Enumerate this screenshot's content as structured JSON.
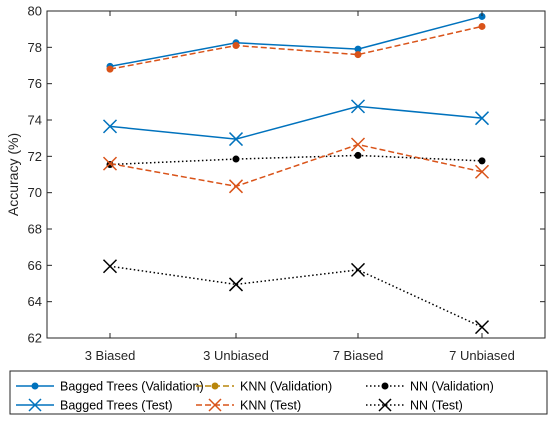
{
  "chart_data": {
    "type": "line",
    "ylabel": "Accuracy (%)",
    "xlabel": "",
    "title": "",
    "categories": [
      "3 Biased",
      "3 Unbiased",
      "7 Biased",
      "7 Unbiased"
    ],
    "ylim": [
      62,
      80
    ],
    "yticks": [
      62,
      64,
      66,
      68,
      70,
      72,
      74,
      76,
      78,
      80
    ],
    "grid": false,
    "legend_position": "bottom",
    "series": [
      {
        "name": "Bagged Trees (Validation)",
        "values": [
          76.95,
          78.25,
          77.9,
          79.7
        ],
        "color": "#0072BD",
        "dash": "solid",
        "marker": "dot"
      },
      {
        "name": "KNN (Validation)",
        "values": [
          76.8,
          78.1,
          77.6,
          79.15
        ],
        "color": "#D95319",
        "dash": "dashed",
        "marker": "dot",
        "legend_color": "#B8860B"
      },
      {
        "name": "NN (Validation)",
        "values": [
          71.55,
          71.85,
          72.05,
          71.75
        ],
        "color": "#000000",
        "dash": "dotted",
        "marker": "dot"
      },
      {
        "name": "Bagged Trees (Test)",
        "values": [
          73.65,
          72.95,
          74.75,
          74.1
        ],
        "color": "#0072BD",
        "dash": "solid",
        "marker": "x"
      },
      {
        "name": "KNN (Test)",
        "values": [
          71.6,
          70.35,
          72.65,
          71.15
        ],
        "color": "#D95319",
        "dash": "dashed",
        "marker": "x"
      },
      {
        "name": "NN (Test)",
        "values": [
          65.95,
          64.95,
          65.75,
          62.6
        ],
        "color": "#000000",
        "dash": "dotted",
        "marker": "x"
      }
    ]
  }
}
